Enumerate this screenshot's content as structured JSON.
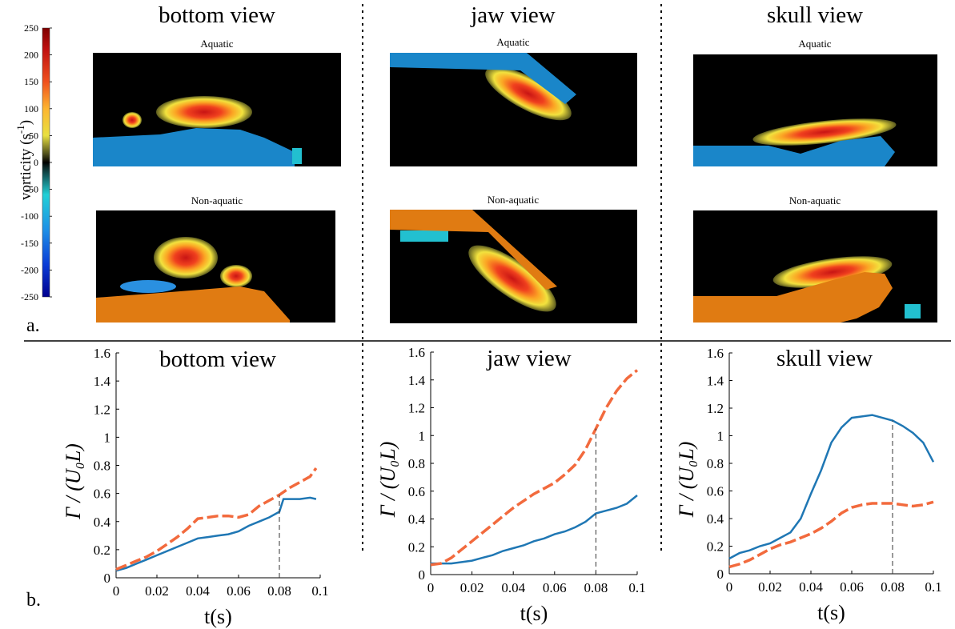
{
  "figure": {
    "panel_a_label": "a.",
    "panel_b_label": "b.",
    "top_titles": [
      "bottom view",
      "jaw view",
      "skull view"
    ],
    "aquatic_label": "Aquatic",
    "non_aquatic_label": "Non-aquatic",
    "colorbar": {
      "label": "vorticity (s",
      "label_sup": "-1",
      "label_close": ")",
      "ticks": [
        "250",
        "200",
        "150",
        "100",
        "50",
        "0",
        "-50",
        "-100",
        "-150",
        "-200",
        "-250"
      ],
      "vmin": -250,
      "vmax": 250
    }
  },
  "chart_data": [
    {
      "type": "line",
      "title": "bottom view",
      "xlabel": "t(s)",
      "ylabel": "Γ / (U₀L)",
      "xlim": [
        0,
        0.1
      ],
      "ylim": [
        0,
        1.6
      ],
      "xticks": [
        "0",
        "0.02",
        "0.04",
        "0.06",
        "0.08",
        "0.1"
      ],
      "yticks": [
        "0",
        "0.2",
        "0.4",
        "0.6",
        "0.8",
        "1",
        "1.2",
        "1.4",
        "1.6"
      ],
      "marker_x": 0.08,
      "series": [
        {
          "color": "#1f77b4",
          "dash": "solid",
          "x": [
            0,
            0.005,
            0.01,
            0.015,
            0.02,
            0.025,
            0.03,
            0.035,
            0.04,
            0.045,
            0.05,
            0.055,
            0.06,
            0.065,
            0.07,
            0.075,
            0.08,
            0.082,
            0.085,
            0.09,
            0.095,
            0.098
          ],
          "y": [
            0.05,
            0.07,
            0.1,
            0.13,
            0.16,
            0.19,
            0.22,
            0.25,
            0.28,
            0.29,
            0.3,
            0.31,
            0.33,
            0.37,
            0.4,
            0.43,
            0.47,
            0.56,
            0.56,
            0.56,
            0.57,
            0.56
          ]
        },
        {
          "color": "#f26a3d",
          "dash": "dashed",
          "x": [
            0,
            0.005,
            0.01,
            0.015,
            0.02,
            0.025,
            0.03,
            0.035,
            0.04,
            0.045,
            0.05,
            0.055,
            0.06,
            0.065,
            0.07,
            0.075,
            0.08,
            0.085,
            0.09,
            0.095,
            0.098
          ],
          "y": [
            0.06,
            0.09,
            0.12,
            0.15,
            0.19,
            0.24,
            0.29,
            0.35,
            0.42,
            0.43,
            0.44,
            0.44,
            0.43,
            0.45,
            0.51,
            0.55,
            0.59,
            0.64,
            0.68,
            0.72,
            0.78
          ]
        }
      ]
    },
    {
      "type": "line",
      "title": "jaw view",
      "xlabel": "t(s)",
      "ylabel": "Γ / (U₀L)",
      "xlim": [
        0,
        0.1
      ],
      "ylim": [
        0,
        1.6
      ],
      "xticks": [
        "0",
        "0.02",
        "0.04",
        "0.06",
        "0.08",
        "0.1"
      ],
      "yticks": [
        "0",
        "0.2",
        "0.4",
        "0.6",
        "0.8",
        "1",
        "1.2",
        "1.4",
        "1.6"
      ],
      "marker_x": 0.08,
      "series": [
        {
          "color": "#1f77b4",
          "dash": "solid",
          "x": [
            0,
            0.005,
            0.01,
            0.015,
            0.02,
            0.025,
            0.03,
            0.035,
            0.04,
            0.045,
            0.05,
            0.055,
            0.06,
            0.065,
            0.07,
            0.075,
            0.08,
            0.085,
            0.09,
            0.095,
            0.1
          ],
          "y": [
            0.08,
            0.08,
            0.08,
            0.09,
            0.1,
            0.12,
            0.14,
            0.17,
            0.19,
            0.21,
            0.24,
            0.26,
            0.29,
            0.31,
            0.34,
            0.38,
            0.44,
            0.46,
            0.48,
            0.51,
            0.57
          ]
        },
        {
          "color": "#f26a3d",
          "dash": "dashed",
          "x": [
            0,
            0.005,
            0.01,
            0.015,
            0.02,
            0.025,
            0.03,
            0.035,
            0.04,
            0.045,
            0.05,
            0.055,
            0.06,
            0.065,
            0.07,
            0.075,
            0.08,
            0.085,
            0.09,
            0.095,
            0.1
          ],
          "y": [
            0.07,
            0.08,
            0.12,
            0.18,
            0.24,
            0.3,
            0.36,
            0.42,
            0.48,
            0.53,
            0.58,
            0.62,
            0.66,
            0.72,
            0.79,
            0.9,
            1.05,
            1.2,
            1.32,
            1.41,
            1.47
          ]
        }
      ]
    },
    {
      "type": "line",
      "title": "skull view",
      "xlabel": "t(s)",
      "ylabel": "Γ / (U₀L)",
      "xlim": [
        0,
        0.1
      ],
      "ylim": [
        0,
        1.6
      ],
      "xticks": [
        "0",
        "0.02",
        "0.04",
        "0.06",
        "0.08",
        "0.1"
      ],
      "yticks": [
        "0",
        "0.2",
        "0.4",
        "0.6",
        "0.8",
        "1",
        "1.2",
        "1.4",
        "1.6"
      ],
      "marker_x": 0.08,
      "series": [
        {
          "color": "#1f77b4",
          "dash": "solid",
          "x": [
            0,
            0.005,
            0.01,
            0.015,
            0.02,
            0.025,
            0.03,
            0.035,
            0.04,
            0.045,
            0.05,
            0.055,
            0.06,
            0.065,
            0.07,
            0.075,
            0.08,
            0.085,
            0.09,
            0.095,
            0.1
          ],
          "y": [
            0.11,
            0.15,
            0.17,
            0.2,
            0.22,
            0.26,
            0.3,
            0.4,
            0.58,
            0.75,
            0.95,
            1.06,
            1.13,
            1.14,
            1.15,
            1.13,
            1.11,
            1.07,
            1.02,
            0.95,
            0.81
          ]
        },
        {
          "color": "#f26a3d",
          "dash": "dashed",
          "x": [
            0,
            0.005,
            0.01,
            0.015,
            0.02,
            0.025,
            0.03,
            0.035,
            0.04,
            0.045,
            0.05,
            0.055,
            0.06,
            0.065,
            0.07,
            0.075,
            0.08,
            0.085,
            0.09,
            0.095,
            0.1
          ],
          "y": [
            0.05,
            0.07,
            0.1,
            0.14,
            0.18,
            0.21,
            0.23,
            0.26,
            0.29,
            0.33,
            0.38,
            0.44,
            0.48,
            0.5,
            0.51,
            0.51,
            0.51,
            0.5,
            0.49,
            0.5,
            0.52
          ]
        }
      ]
    }
  ]
}
